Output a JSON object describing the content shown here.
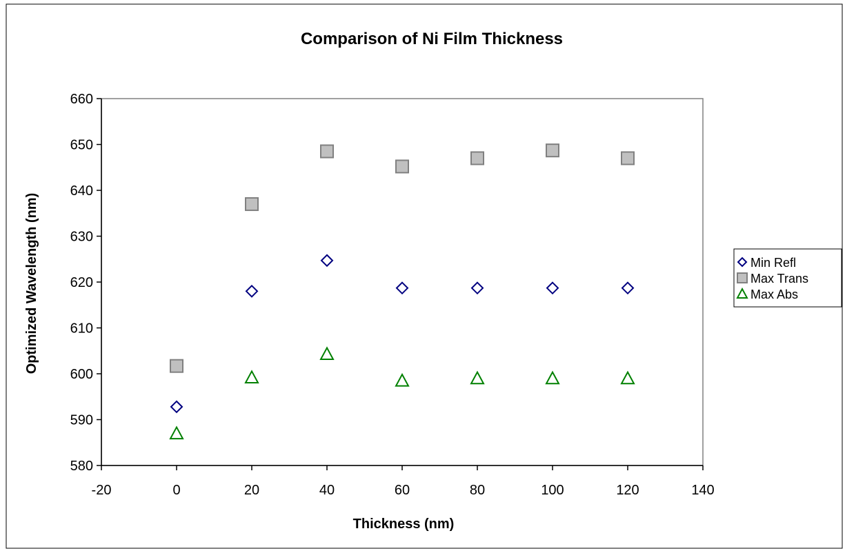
{
  "chart_data": {
    "type": "scatter",
    "title": "Comparison of Ni Film Thickness",
    "xlabel": "Thickness (nm)",
    "ylabel": "Optimized Wavelength (nm)",
    "xlim": [
      -20,
      140
    ],
    "ylim": [
      580,
      660
    ],
    "xticks": [
      -20,
      0,
      20,
      40,
      60,
      80,
      100,
      120,
      140
    ],
    "yticks": [
      580,
      590,
      600,
      610,
      620,
      630,
      640,
      650,
      660
    ],
    "grid": false,
    "legend_position": "right",
    "series": [
      {
        "name": "Min Refl",
        "marker": "diamond",
        "color": "#000080",
        "fill": "#ffffff",
        "x": [
          0,
          20,
          40,
          60,
          80,
          100,
          120
        ],
        "y": [
          592.8,
          618,
          624.7,
          618.7,
          618.7,
          618.7,
          618.7
        ]
      },
      {
        "name": "Max Trans",
        "marker": "square",
        "color": "#808080",
        "fill": "#c0c0c0",
        "x": [
          0,
          20,
          40,
          60,
          80,
          100,
          120
        ],
        "y": [
          601.7,
          637,
          648.5,
          645.2,
          647,
          648.7,
          647
        ]
      },
      {
        "name": "Max Abs",
        "marker": "triangle",
        "color": "#008000",
        "fill": "#ffffff",
        "x": [
          0,
          20,
          40,
          60,
          80,
          100,
          120
        ],
        "y": [
          587,
          599.2,
          604.3,
          598.5,
          599,
          599,
          599
        ]
      }
    ]
  }
}
